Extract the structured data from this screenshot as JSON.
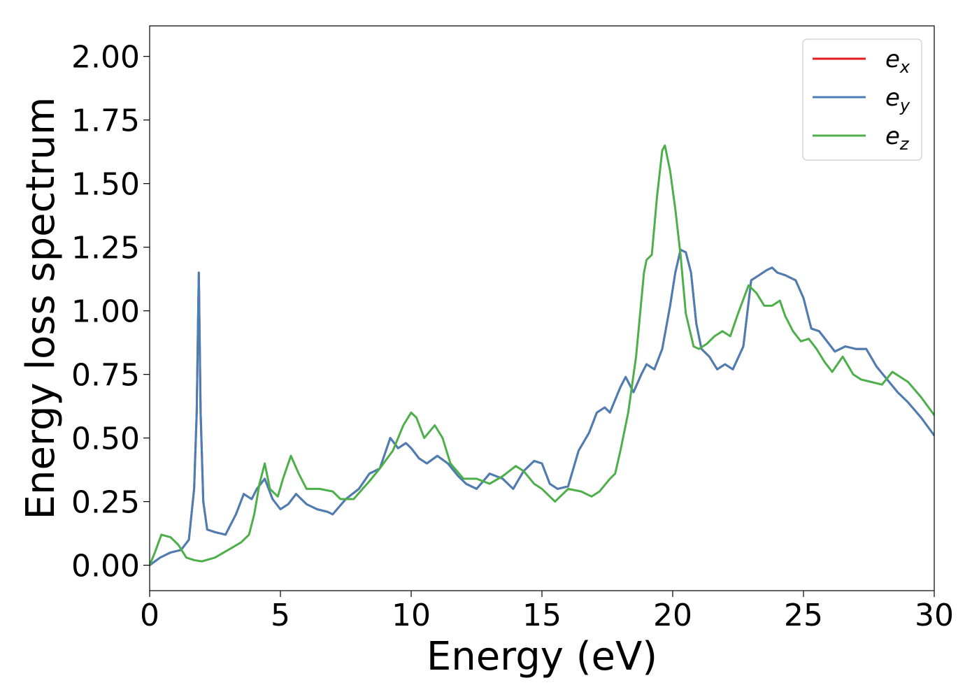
{
  "chart_data": {
    "type": "line",
    "xlabel": "Energy (eV)",
    "ylabel": "Energy loss spectrum",
    "xlim": [
      0,
      30
    ],
    "ylim": [
      -0.1,
      2.12
    ],
    "xticks": [
      0,
      5,
      10,
      15,
      20,
      25,
      30
    ],
    "xtick_labels": [
      "0",
      "5",
      "10",
      "15",
      "20",
      "25",
      "30"
    ],
    "yticks": [
      0.0,
      0.25,
      0.5,
      0.75,
      1.0,
      1.25,
      1.5,
      1.75,
      2.0
    ],
    "ytick_labels": [
      "0.00",
      "0.25",
      "0.50",
      "0.75",
      "1.00",
      "1.25",
      "1.50",
      "1.75",
      "2.00"
    ],
    "grid": false,
    "legend_position": "top-right",
    "series": [
      {
        "name": "e",
        "subscript": "x",
        "color": "#e41a1c",
        "x": [
          0,
          0.4,
          0.8,
          1.2,
          1.5,
          1.7,
          1.8,
          1.88,
          1.95,
          2.05,
          2.2,
          2.5,
          2.9,
          3.3,
          3.6,
          3.9,
          4.1,
          4.4,
          4.7,
          5.0,
          5.3,
          5.6,
          6.0,
          6.4,
          6.8,
          7.0,
          7.5,
          8.0,
          8.4,
          8.8,
          9.2,
          9.5,
          9.8,
          10.0,
          10.3,
          10.6,
          11.0,
          11.4,
          11.8,
          12.1,
          12.5,
          13.0,
          13.5,
          13.9,
          14.3,
          14.7,
          15.0,
          15.3,
          15.6,
          16.0,
          16.4,
          16.8,
          17.1,
          17.4,
          17.6,
          18.0,
          18.2,
          18.5,
          18.8,
          19.0,
          19.3,
          19.6,
          19.9,
          20.1,
          20.3,
          20.5,
          20.7,
          20.9,
          21.1,
          21.4,
          21.7,
          22.0,
          22.3,
          22.7,
          23.0,
          23.3,
          23.6,
          23.8,
          24.0,
          24.3,
          24.7,
          25.0,
          25.3,
          25.6,
          25.9,
          26.2,
          26.6,
          27.0,
          27.4,
          27.8,
          28.2,
          28.6,
          29.0,
          29.5,
          30.0
        ],
        "y": [
          0.0,
          0.03,
          0.05,
          0.06,
          0.1,
          0.3,
          0.6,
          1.15,
          0.6,
          0.25,
          0.14,
          0.13,
          0.12,
          0.2,
          0.28,
          0.26,
          0.3,
          0.34,
          0.26,
          0.22,
          0.24,
          0.28,
          0.24,
          0.22,
          0.21,
          0.2,
          0.26,
          0.3,
          0.36,
          0.38,
          0.5,
          0.46,
          0.48,
          0.46,
          0.42,
          0.4,
          0.43,
          0.4,
          0.35,
          0.32,
          0.3,
          0.36,
          0.34,
          0.3,
          0.37,
          0.41,
          0.4,
          0.32,
          0.3,
          0.31,
          0.45,
          0.52,
          0.6,
          0.62,
          0.6,
          0.7,
          0.74,
          0.68,
          0.75,
          0.79,
          0.77,
          0.85,
          1.02,
          1.15,
          1.24,
          1.23,
          1.15,
          0.95,
          0.85,
          0.82,
          0.77,
          0.79,
          0.77,
          0.86,
          1.12,
          1.14,
          1.16,
          1.17,
          1.15,
          1.14,
          1.12,
          1.05,
          0.93,
          0.92,
          0.88,
          0.84,
          0.86,
          0.85,
          0.85,
          0.78,
          0.73,
          0.68,
          0.64,
          0.58,
          0.51
        ]
      },
      {
        "name": "e",
        "subscript": "y",
        "color": "#4a7fb5",
        "x": [
          0,
          0.4,
          0.8,
          1.2,
          1.5,
          1.7,
          1.8,
          1.88,
          1.95,
          2.05,
          2.2,
          2.5,
          2.9,
          3.3,
          3.6,
          3.9,
          4.1,
          4.4,
          4.7,
          5.0,
          5.3,
          5.6,
          6.0,
          6.4,
          6.8,
          7.0,
          7.5,
          8.0,
          8.4,
          8.8,
          9.2,
          9.5,
          9.8,
          10.0,
          10.3,
          10.6,
          11.0,
          11.4,
          11.8,
          12.1,
          12.5,
          13.0,
          13.5,
          13.9,
          14.3,
          14.7,
          15.0,
          15.3,
          15.6,
          16.0,
          16.4,
          16.8,
          17.1,
          17.4,
          17.6,
          18.0,
          18.2,
          18.5,
          18.8,
          19.0,
          19.3,
          19.6,
          19.9,
          20.1,
          20.3,
          20.5,
          20.7,
          20.9,
          21.1,
          21.4,
          21.7,
          22.0,
          22.3,
          22.7,
          23.0,
          23.3,
          23.6,
          23.8,
          24.0,
          24.3,
          24.7,
          25.0,
          25.3,
          25.6,
          25.9,
          26.2,
          26.6,
          27.0,
          27.4,
          27.8,
          28.2,
          28.6,
          29.0,
          29.5,
          30.0
        ],
        "y": [
          0.0,
          0.03,
          0.05,
          0.06,
          0.1,
          0.3,
          0.6,
          1.15,
          0.6,
          0.25,
          0.14,
          0.13,
          0.12,
          0.2,
          0.28,
          0.26,
          0.3,
          0.34,
          0.26,
          0.22,
          0.24,
          0.28,
          0.24,
          0.22,
          0.21,
          0.2,
          0.26,
          0.3,
          0.36,
          0.38,
          0.5,
          0.46,
          0.48,
          0.46,
          0.42,
          0.4,
          0.43,
          0.4,
          0.35,
          0.32,
          0.3,
          0.36,
          0.34,
          0.3,
          0.37,
          0.41,
          0.4,
          0.32,
          0.3,
          0.31,
          0.45,
          0.52,
          0.6,
          0.62,
          0.6,
          0.7,
          0.74,
          0.68,
          0.75,
          0.79,
          0.77,
          0.85,
          1.02,
          1.15,
          1.24,
          1.23,
          1.15,
          0.95,
          0.85,
          0.82,
          0.77,
          0.79,
          0.77,
          0.86,
          1.12,
          1.14,
          1.16,
          1.17,
          1.15,
          1.14,
          1.12,
          1.05,
          0.93,
          0.92,
          0.88,
          0.84,
          0.86,
          0.85,
          0.85,
          0.78,
          0.73,
          0.68,
          0.64,
          0.58,
          0.51
        ]
      },
      {
        "name": "e",
        "subscript": "z",
        "color": "#4daf4a",
        "x": [
          0,
          0.2,
          0.45,
          0.8,
          1.1,
          1.4,
          1.7,
          2.0,
          2.5,
          3.0,
          3.5,
          3.8,
          4.0,
          4.2,
          4.4,
          4.6,
          4.9,
          5.1,
          5.4,
          5.7,
          6.0,
          6.5,
          7.0,
          7.3,
          7.8,
          8.4,
          8.8,
          9.3,
          9.7,
          10.0,
          10.2,
          10.5,
          10.9,
          11.2,
          11.5,
          12.0,
          12.5,
          13.0,
          13.5,
          14.0,
          14.3,
          14.7,
          15.0,
          15.5,
          16.0,
          16.5,
          16.9,
          17.2,
          17.6,
          17.8,
          18.0,
          18.3,
          18.6,
          18.9,
          19.0,
          19.2,
          19.4,
          19.6,
          19.7,
          19.9,
          20.1,
          20.3,
          20.5,
          20.8,
          21.0,
          21.3,
          21.6,
          21.9,
          22.2,
          22.5,
          22.9,
          23.2,
          23.5,
          23.8,
          24.1,
          24.3,
          24.6,
          24.9,
          25.2,
          25.5,
          25.8,
          26.1,
          26.5,
          26.9,
          27.2,
          27.6,
          28.0,
          28.4,
          28.7,
          29.0,
          29.5,
          30.0
        ],
        "y": [
          0.0,
          0.05,
          0.12,
          0.11,
          0.08,
          0.03,
          0.02,
          0.015,
          0.03,
          0.06,
          0.09,
          0.12,
          0.2,
          0.32,
          0.4,
          0.3,
          0.27,
          0.34,
          0.43,
          0.36,
          0.3,
          0.3,
          0.29,
          0.26,
          0.26,
          0.33,
          0.38,
          0.45,
          0.55,
          0.6,
          0.58,
          0.5,
          0.55,
          0.5,
          0.4,
          0.34,
          0.34,
          0.32,
          0.35,
          0.39,
          0.37,
          0.32,
          0.3,
          0.25,
          0.3,
          0.29,
          0.27,
          0.29,
          0.34,
          0.36,
          0.45,
          0.6,
          0.82,
          1.15,
          1.2,
          1.22,
          1.45,
          1.63,
          1.65,
          1.55,
          1.4,
          1.22,
          0.99,
          0.86,
          0.85,
          0.87,
          0.9,
          0.92,
          0.9,
          0.99,
          1.1,
          1.07,
          1.02,
          1.02,
          1.04,
          0.98,
          0.92,
          0.88,
          0.89,
          0.85,
          0.8,
          0.76,
          0.82,
          0.75,
          0.73,
          0.72,
          0.71,
          0.76,
          0.74,
          0.72,
          0.66,
          0.59
        ]
      }
    ]
  }
}
